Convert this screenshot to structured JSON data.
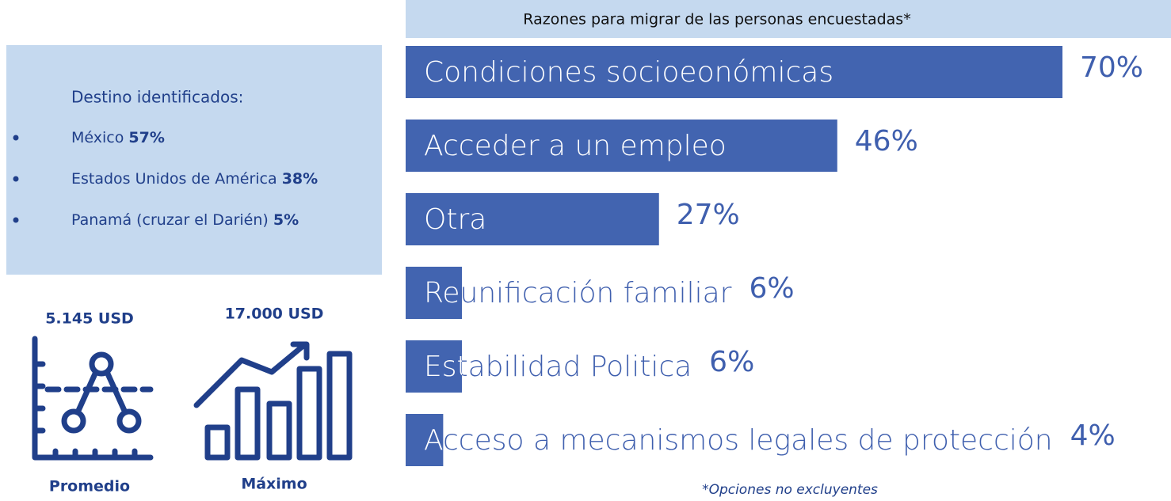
{
  "chart_data": {
    "type": "bar",
    "orientation": "horizontal",
    "title": "Razones para migrar de las personas encuestadas*",
    "categories": [
      "Condiciones socioeonómicas",
      "Acceder a un empleo",
      "Otra",
      "Reunificación familiar",
      "Estabilidad Politica",
      "Acceso a mecanismos legales de protección"
    ],
    "values": [
      70,
      46,
      27,
      6,
      6,
      4
    ],
    "value_labels": [
      "70%",
      "46%",
      "27%",
      "6%",
      "6%",
      "4%"
    ],
    "color": "#4264b0",
    "note": "*Opciones no excluyentes"
  },
  "destinations": {
    "title": "Destino identificados:",
    "items": [
      {
        "name": "México",
        "value": "57%"
      },
      {
        "name": "Estados Unidos de América",
        "value": "38%"
      },
      {
        "name": "Panamá (cruzar el Darién)",
        "value": "5%"
      }
    ]
  },
  "costs": [
    {
      "value": "5.145 USD",
      "label": "Promedio"
    },
    {
      "value": "17.000 USD",
      "label": "Máximo"
    }
  ]
}
